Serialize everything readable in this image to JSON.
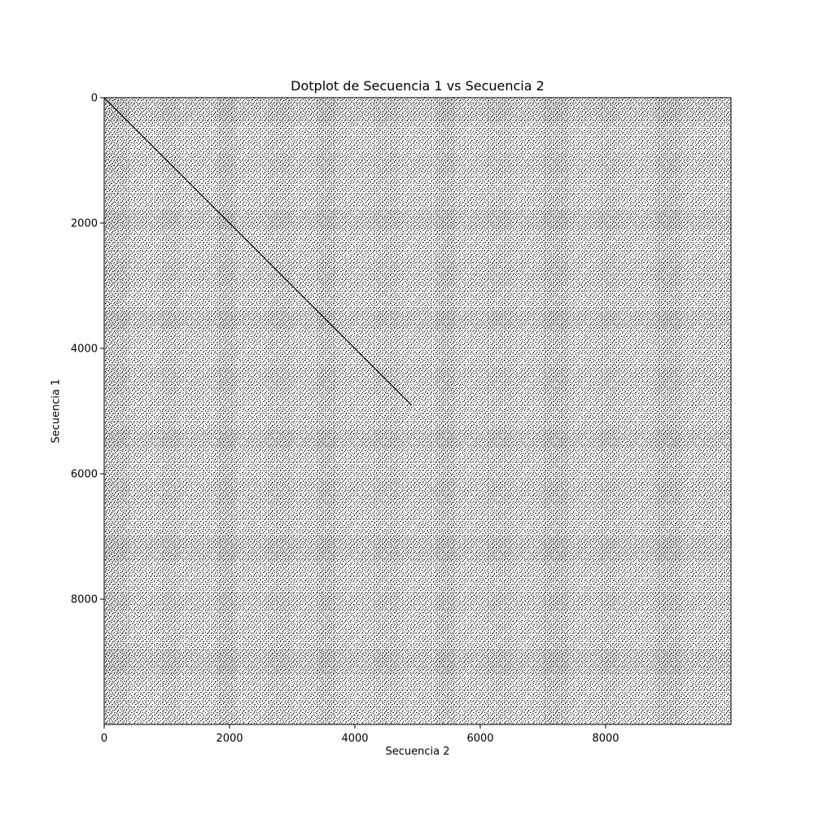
{
  "chart_data": {
    "type": "heatmap",
    "title": "Dotplot de Secuencia 1 vs Secuencia 2",
    "xlabel": "Secuencia 2",
    "ylabel": "Secuencia 1",
    "xlim": [
      0,
      10000
    ],
    "ylim": [
      10000,
      0
    ],
    "xticks": [
      0,
      2000,
      4000,
      6000,
      8000
    ],
    "yticks": [
      0,
      2000,
      4000,
      6000,
      8000
    ],
    "xtick_labels": [
      "0",
      "2000",
      "4000",
      "6000",
      "8000"
    ],
    "ytick_labels": [
      "0",
      "2000",
      "4000",
      "6000",
      "8000"
    ],
    "y_inverted": true,
    "grid": false,
    "colormap": [
      "#ffffff",
      "#000000"
    ],
    "pattern": "dense binary match matrix with nucleotide-like repeats",
    "diagonal_match": {
      "x_start": 0,
      "y_start": 0,
      "x_end": 4900,
      "y_end": 4900
    }
  }
}
